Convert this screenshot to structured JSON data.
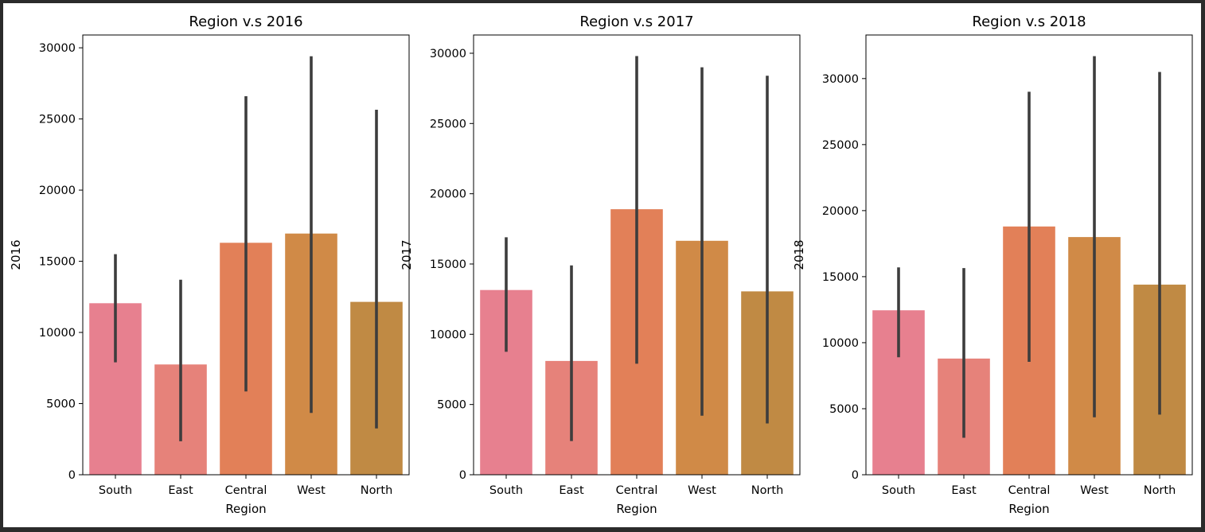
{
  "chart_data": [
    {
      "type": "bar",
      "title": "Region v.s 2016",
      "xlabel": "Region",
      "ylabel": "2016",
      "categories": [
        "South",
        "East",
        "Central",
        "West",
        "North"
      ],
      "values": [
        12050,
        7750,
        16300,
        16950,
        12150
      ],
      "error_low": [
        7900,
        2350,
        5850,
        4350,
        3250
      ],
      "error_high": [
        15500,
        13700,
        26600,
        29400,
        25650
      ],
      "ylim": [
        0,
        30900
      ],
      "yticks": [
        0,
        5000,
        10000,
        15000,
        20000,
        25000,
        30000
      ],
      "colors": [
        "#e7808f",
        "#e6827a",
        "#e28058",
        "#d08a47",
        "#c08a44"
      ],
      "grid": false
    },
    {
      "type": "bar",
      "title": "Region v.s 2017",
      "xlabel": "Region",
      "ylabel": "2017",
      "categories": [
        "South",
        "East",
        "Central",
        "West",
        "North"
      ],
      "values": [
        13150,
        8100,
        18900,
        16650,
        13050
      ],
      "error_low": [
        8750,
        2400,
        7900,
        4200,
        3650
      ],
      "error_high": [
        16900,
        14900,
        29800,
        29000,
        28400
      ],
      "ylim": [
        0,
        31300
      ],
      "yticks": [
        0,
        5000,
        10000,
        15000,
        20000,
        25000,
        30000
      ],
      "colors": [
        "#e7808f",
        "#e6827a",
        "#e28058",
        "#d08a47",
        "#c08a44"
      ],
      "grid": false
    },
    {
      "type": "bar",
      "title": "Region v.s 2018",
      "xlabel": "Region",
      "ylabel": "2018",
      "categories": [
        "South",
        "East",
        "Central",
        "West",
        "North"
      ],
      "values": [
        12450,
        8800,
        18800,
        18000,
        14400
      ],
      "error_low": [
        8900,
        2800,
        8550,
        4350,
        4550
      ],
      "error_high": [
        15700,
        15650,
        29000,
        31700,
        30500
      ],
      "ylim": [
        0,
        33300
      ],
      "yticks": [
        0,
        5000,
        10000,
        15000,
        20000,
        25000,
        30000
      ],
      "colors": [
        "#e7808f",
        "#e6827a",
        "#e28058",
        "#d08a47",
        "#c08a44"
      ],
      "grid": false
    }
  ]
}
